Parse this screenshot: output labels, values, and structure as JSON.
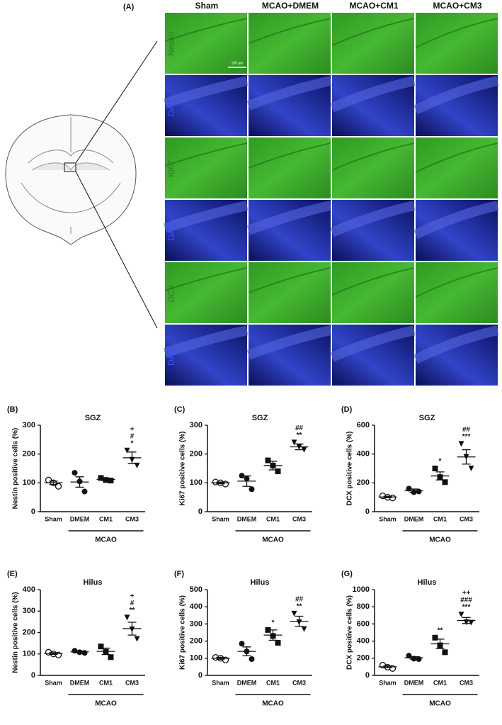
{
  "panel_a": {
    "label": "(A)",
    "columns": [
      "Sham",
      "MCAO+DMEM",
      "MCAO+CM1",
      "MCAO+CM3"
    ],
    "rows": [
      "Nestin",
      "DAPI",
      "Ki67",
      "DAPI",
      "DCX",
      "DAPI"
    ],
    "scale_bar": "100 μm"
  },
  "chart_data": [
    {
      "type": "dot",
      "panel": "(B)",
      "title": "SGZ",
      "y_label": "Nestin positive cells (%)",
      "categories": [
        "Sham",
        "DMEM",
        "CM1",
        "CM3"
      ],
      "group_label": "MCAO",
      "markers": [
        "open-circle",
        "circle",
        "square",
        "triangle-down"
      ],
      "color": "#111111",
      "points": [
        [
          110,
          100,
          88
        ],
        [
          135,
          105,
          70
        ],
        [
          117,
          110,
          108
        ],
        [
          212,
          180,
          160
        ]
      ],
      "mean": [
        100,
        103,
        112,
        187
      ],
      "sem": [
        6,
        18,
        4,
        20
      ],
      "annotations": [
        {
          "category": "CM3",
          "text": [
            "+",
            "#",
            "*"
          ]
        }
      ],
      "ylim": [
        0,
        300
      ],
      "yticks": [
        0,
        100,
        200,
        300
      ]
    },
    {
      "type": "dot",
      "panel": "(C)",
      "title": "SGZ",
      "y_label": "Ki67 positive cells (%)",
      "categories": [
        "Sham",
        "DMEM",
        "CM1",
        "CM3"
      ],
      "group_label": "MCAO",
      "markers": [
        "open-circle",
        "circle",
        "square",
        "triangle-down"
      ],
      "color": "#111111",
      "points": [
        [
          103,
          100,
          96
        ],
        [
          125,
          115,
          78
        ],
        [
          178,
          160,
          140
        ],
        [
          240,
          225,
          215
        ]
      ],
      "mean": [
        100,
        106,
        160,
        225
      ],
      "sem": [
        3,
        18,
        15,
        10
      ],
      "annotations": [
        {
          "category": "CM3",
          "text": [
            "##",
            "**"
          ]
        }
      ],
      "ylim": [
        0,
        300
      ],
      "yticks": [
        0,
        100,
        200,
        300
      ]
    },
    {
      "type": "dot",
      "panel": "(D)",
      "title": "SGZ",
      "y_label": "DCX positive cells (%)",
      "categories": [
        "Sham",
        "DMEM",
        "CM1",
        "CM3"
      ],
      "group_label": "MCAO",
      "markers": [
        "open-circle",
        "circle",
        "square",
        "triangle-down"
      ],
      "color": "#111111",
      "points": [
        [
          110,
          100,
          95
        ],
        [
          160,
          135,
          140
        ],
        [
          300,
          240,
          205
        ],
        [
          470,
          380,
          300
        ]
      ],
      "mean": [
        102,
        145,
        248,
        380
      ],
      "sem": [
        5,
        12,
        28,
        50
      ],
      "annotations": [
        {
          "category": "CM1",
          "text": [
            "*"
          ]
        },
        {
          "category": "CM3",
          "text": [
            "##",
            "***"
          ]
        }
      ],
      "ylim": [
        0,
        600
      ],
      "yticks": [
        0,
        200,
        400,
        600
      ]
    },
    {
      "type": "dot",
      "panel": "(E)",
      "title": "Hilus",
      "y_label": "Nestin positive cells (%)",
      "categories": [
        "Sham",
        "DMEM",
        "CM1",
        "CM3"
      ],
      "group_label": "MCAO",
      "markers": [
        "open-circle",
        "circle",
        "square",
        "triangle-down"
      ],
      "color": "#111111",
      "points": [
        [
          108,
          100,
          95
        ],
        [
          115,
          108,
          105
        ],
        [
          135,
          110,
          85
        ],
        [
          270,
          215,
          170
        ]
      ],
      "mean": [
        102,
        110,
        112,
        218
      ],
      "sem": [
        4,
        4,
        15,
        30
      ],
      "annotations": [
        {
          "category": "CM3",
          "text": [
            "+",
            "#",
            "**"
          ]
        }
      ],
      "ylim": [
        0,
        400
      ],
      "yticks": [
        0,
        100,
        200,
        300,
        400
      ]
    },
    {
      "type": "dot",
      "panel": "(F)",
      "title": "Hilus",
      "y_label": "Ki67 positive cells (%)",
      "categories": [
        "Sham",
        "DMEM",
        "CM1",
        "CM3"
      ],
      "group_label": "MCAO",
      "markers": [
        "open-circle",
        "circle",
        "square",
        "triangle-down"
      ],
      "color": "#111111",
      "points": [
        [
          105,
          100,
          90
        ],
        [
          185,
          140,
          95
        ],
        [
          265,
          230,
          190
        ],
        [
          360,
          310,
          270
        ]
      ],
      "mean": [
        100,
        140,
        235,
        315
      ],
      "sem": [
        6,
        26,
        30,
        30
      ],
      "annotations": [
        {
          "category": "CM1",
          "text": [
            "*"
          ]
        },
        {
          "category": "CM3",
          "text": [
            "##",
            "**"
          ]
        }
      ],
      "ylim": [
        0,
        500
      ],
      "yticks": [
        0,
        100,
        200,
        300,
        400,
        500
      ]
    },
    {
      "type": "dot",
      "panel": "(G)",
      "title": "Hilus",
      "y_label": "DCX positive cells (%)",
      "categories": [
        "Sham",
        "DMEM",
        "CM1",
        "CM3"
      ],
      "group_label": "MCAO",
      "markers": [
        "open-circle",
        "circle",
        "square",
        "triangle-down"
      ],
      "color": "#111111",
      "points": [
        [
          120,
          95,
          80
        ],
        [
          230,
          195,
          190
        ],
        [
          440,
          350,
          270
        ],
        [
          710,
          620,
          615
        ]
      ],
      "mean": [
        100,
        205,
        368,
        640
      ],
      "sem": [
        12,
        14,
        55,
        35
      ],
      "annotations": [
        {
          "category": "CM1",
          "text": [
            "**"
          ]
        },
        {
          "category": "CM3",
          "text": [
            "++",
            "###",
            "***"
          ]
        }
      ],
      "ylim": [
        0,
        1000
      ],
      "yticks": [
        0,
        200,
        400,
        600,
        800,
        1000
      ]
    }
  ]
}
